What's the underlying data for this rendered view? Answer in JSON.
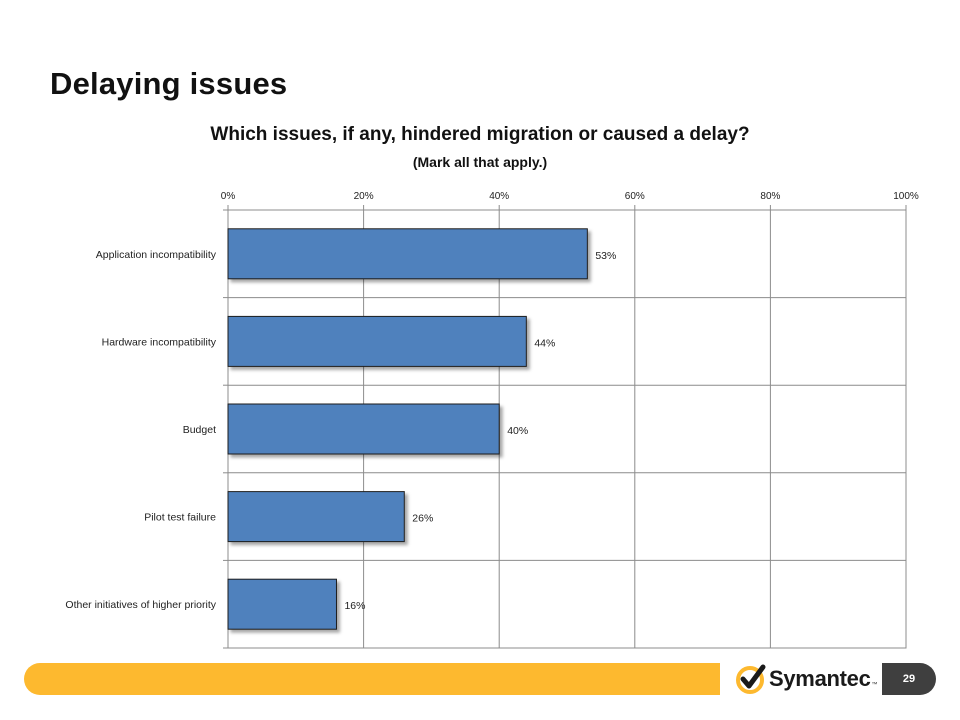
{
  "slide": {
    "title": "Delaying issues",
    "page_number": "29"
  },
  "brand": {
    "logo_text": "Symantec",
    "logo_tm": "™",
    "colors": {
      "bar_fill": "#4f81bd",
      "footer_bar": "#fdb92f",
      "page_number_bg": "#3f3f3f",
      "logo_check": "#fdb92f"
    }
  },
  "chart_data": {
    "type": "bar",
    "orientation": "horizontal",
    "title": "Which issues, if any, hindered migration or caused a delay?",
    "subtitle": "(Mark all that apply.)",
    "categories": [
      "Application incompatibility",
      "Hardware incompatibility",
      "Budget",
      "Pilot test failure",
      "Other initiatives of higher priority"
    ],
    "values": [
      53,
      44,
      40,
      26,
      16
    ],
    "value_labels": [
      "53%",
      "44%",
      "40%",
      "26%",
      "16%"
    ],
    "xlim": [
      0,
      100
    ],
    "x_ticks": [
      0,
      20,
      40,
      60,
      80,
      100
    ],
    "x_tick_labels": [
      "0%",
      "20%",
      "40%",
      "60%",
      "80%",
      "100%"
    ],
    "x_axis_position": "top",
    "grid": true,
    "legend": "none"
  }
}
